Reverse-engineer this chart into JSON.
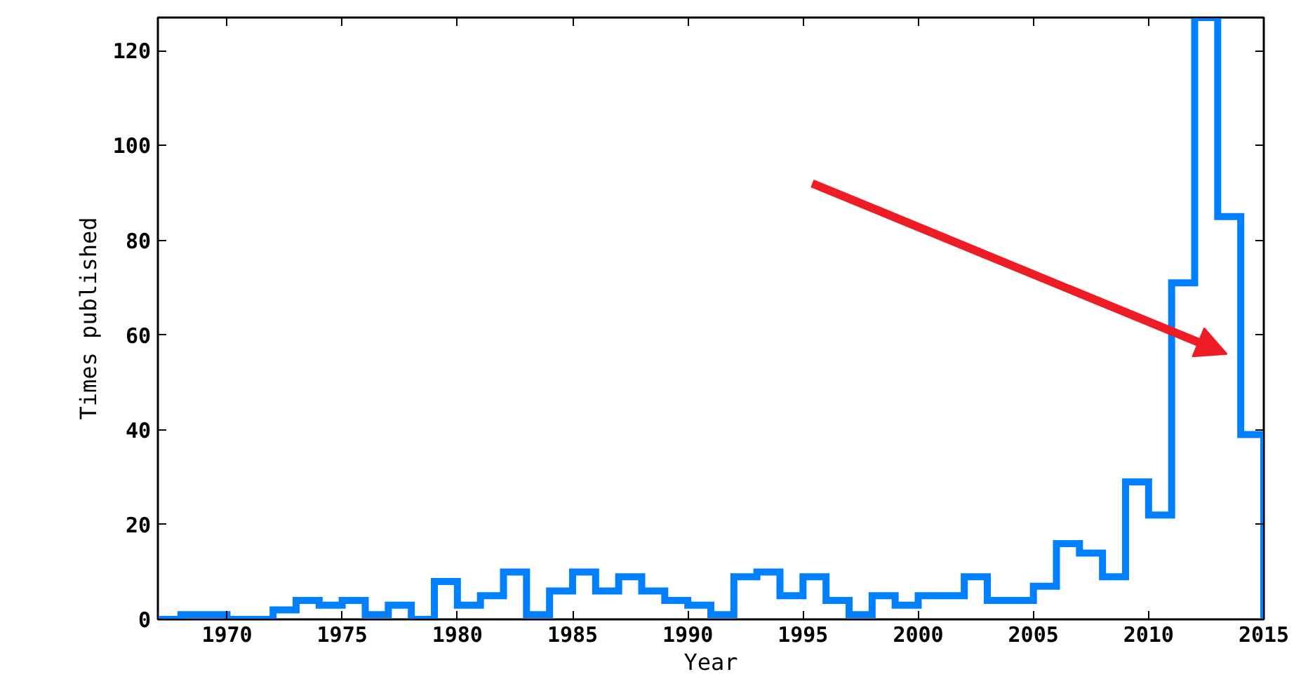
{
  "chart_data": {
    "type": "histogram",
    "xlabel": "Year",
    "ylabel": "Times published",
    "color": "#0080ff",
    "bins": [
      1967,
      1968,
      1969,
      1970,
      1971,
      1972,
      1973,
      1974,
      1975,
      1976,
      1977,
      1978,
      1979,
      1980,
      1981,
      1982,
      1983,
      1984,
      1985,
      1986,
      1987,
      1988,
      1989,
      1990,
      1991,
      1992,
      1993,
      1994,
      1995,
      1996,
      1997,
      1998,
      1999,
      2000,
      2001,
      2002,
      2003,
      2004,
      2005,
      2006,
      2007,
      2008,
      2009,
      2010,
      2011,
      2012,
      2013,
      2014,
      2015
    ],
    "values": [
      0,
      1,
      1,
      0,
      0,
      2,
      4,
      3,
      4,
      1,
      3,
      0,
      8,
      3,
      5,
      10,
      1,
      6,
      10,
      6,
      9,
      6,
      4,
      3,
      1,
      9,
      10,
      5,
      9,
      4,
      1,
      5,
      3,
      5,
      5,
      9,
      4,
      4,
      7,
      16,
      14,
      9,
      29,
      22,
      71,
      127,
      85,
      39
    ],
    "xlim": [
      1967,
      2015
    ],
    "ylim": [
      0,
      127
    ],
    "xticks": [
      1970,
      1975,
      1980,
      1985,
      1990,
      1995,
      2000,
      2005,
      2010,
      2015
    ],
    "yticks": [
      0,
      20,
      40,
      60,
      80,
      100,
      120
    ],
    "grid": false
  }
}
